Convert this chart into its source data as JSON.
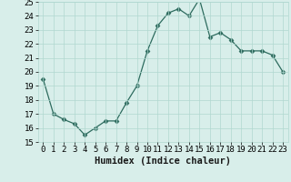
{
  "xlabel": "Humidex (Indice chaleur)",
  "x": [
    0,
    1,
    2,
    3,
    4,
    5,
    6,
    7,
    8,
    9,
    10,
    11,
    12,
    13,
    14,
    15,
    16,
    17,
    18,
    19,
    20,
    21,
    22,
    23
  ],
  "y": [
    19.5,
    17.0,
    16.6,
    16.3,
    15.5,
    16.0,
    16.5,
    16.5,
    17.8,
    19.0,
    21.5,
    23.3,
    24.2,
    24.5,
    24.0,
    25.2,
    22.5,
    22.8,
    22.3,
    21.5,
    21.5,
    21.5,
    21.2,
    20.0
  ],
  "line_color": "#2d6b5e",
  "marker": "D",
  "marker_size": 2.5,
  "bg_color": "#d8eeea",
  "grid_color": "#b0d8d0",
  "ylim": [
    15,
    25
  ],
  "xlim": [
    -0.5,
    23.5
  ],
  "yticks": [
    15,
    16,
    17,
    18,
    19,
    20,
    21,
    22,
    23,
    24,
    25
  ],
  "xticks": [
    0,
    1,
    2,
    3,
    4,
    5,
    6,
    7,
    8,
    9,
    10,
    11,
    12,
    13,
    14,
    15,
    16,
    17,
    18,
    19,
    20,
    21,
    22,
    23
  ],
  "tick_fontsize": 6.5,
  "xlabel_fontsize": 7.5
}
